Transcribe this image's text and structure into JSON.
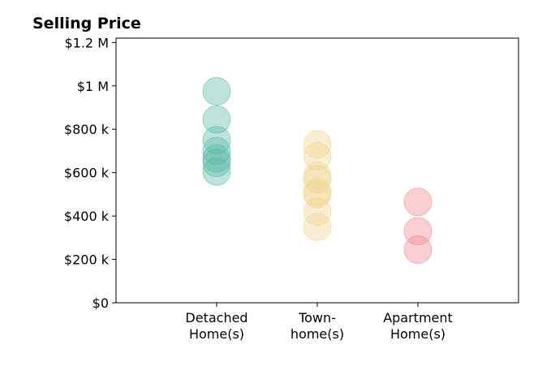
{
  "chart_data": {
    "type": "scatter",
    "title": "Selling Price",
    "xlabel": "",
    "ylabel": "",
    "categories": [
      [
        "Detached",
        "Home(s)"
      ],
      [
        "Town-",
        "home(s)"
      ],
      [
        "Apartment",
        "Home(s)"
      ]
    ],
    "y_ticks": [
      {
        "value": 0,
        "label": "$0"
      },
      {
        "value": 200000,
        "label": "$200 k"
      },
      {
        "value": 400000,
        "label": "$400 k"
      },
      {
        "value": 600000,
        "label": "$600 k"
      },
      {
        "value": 800000,
        "label": "$800 k"
      },
      {
        "value": 1000000,
        "label": "$1 M"
      },
      {
        "value": 1200000,
        "label": "$1.2 M"
      }
    ],
    "ylim": [
      0,
      1220000
    ],
    "xlim": [
      0,
      4
    ],
    "grid": false,
    "series": [
      {
        "category": 0,
        "color": "#5bb8a8",
        "values": [
          975000,
          845000,
          750000,
          700000,
          665000,
          645000,
          605000
        ]
      },
      {
        "category": 1,
        "color": "#f0d590",
        "values": [
          730000,
          675000,
          585000,
          570000,
          510000,
          500000,
          420000,
          350000
        ]
      },
      {
        "category": 2,
        "color": "#f08890",
        "values": [
          465000,
          330000,
          245000
        ]
      }
    ]
  }
}
